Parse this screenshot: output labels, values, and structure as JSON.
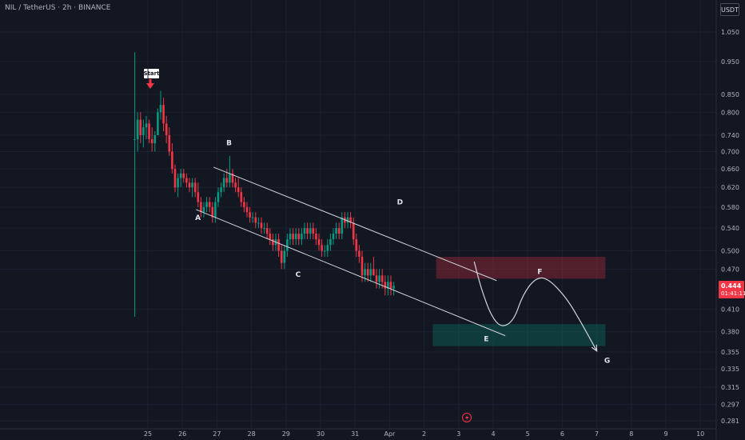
{
  "header": {
    "symbol_line": "NIL / TetherUS · 2h · BINANCE"
  },
  "currency": "USDT",
  "price_tag": {
    "price": "0.444",
    "countdown": "01:41:11"
  },
  "start_label": "Start",
  "chart_data": {
    "type": "candlestick",
    "title": "NIL / TetherUS · 2h · BINANCE",
    "y_axis": {
      "scale": "log",
      "ticks": [
        1.05,
        0.95,
        0.85,
        0.8,
        0.74,
        0.7,
        0.66,
        0.62,
        0.58,
        0.54,
        0.5,
        0.47,
        0.41,
        0.38,
        0.355,
        0.335,
        0.315,
        0.297,
        0.281
      ],
      "tick_labels": [
        "1.050",
        "0.950",
        "0.850",
        "0.800",
        "0.740",
        "0.700",
        "0.660",
        "0.620",
        "0.580",
        "0.540",
        "0.500",
        "0.470",
        "0.410",
        "0.380",
        "0.355",
        "0.335",
        "0.315",
        "0.297",
        "0.281"
      ],
      "range": [
        0.272,
        1.09
      ]
    },
    "x_axis": {
      "ticks": [
        {
          "label": "25",
          "day": 25
        },
        {
          "label": "26",
          "day": 26
        },
        {
          "label": "27",
          "day": 27
        },
        {
          "label": "28",
          "day": 28
        },
        {
          "label": "29",
          "day": 29
        },
        {
          "label": "30",
          "day": 30
        },
        {
          "label": "31",
          "day": 31
        },
        {
          "label": "Apr",
          "day": 32
        },
        {
          "label": "2",
          "day": 33
        },
        {
          "label": "3",
          "day": 34
        },
        {
          "label": "4",
          "day": 35
        },
        {
          "label": "5",
          "day": 36
        },
        {
          "label": "6",
          "day": 37
        },
        {
          "label": "7",
          "day": 38
        },
        {
          "label": "8",
          "day": 39
        },
        {
          "label": "9",
          "day": 40
        },
        {
          "label": "10",
          "day": 41
        }
      ],
      "range": [
        21.1,
        42.0
      ]
    },
    "candles_per_day": 12,
    "first_candle_day": 24.62,
    "candles": [
      [
        0.73,
        0.98,
        0.4,
        0.73
      ],
      [
        0.73,
        0.8,
        0.7,
        0.78
      ],
      [
        0.78,
        0.8,
        0.72,
        0.74
      ],
      [
        0.74,
        0.78,
        0.71,
        0.76
      ],
      [
        0.76,
        0.79,
        0.73,
        0.77
      ],
      [
        0.77,
        0.78,
        0.72,
        0.73
      ],
      [
        0.73,
        0.76,
        0.7,
        0.72
      ],
      [
        0.72,
        0.75,
        0.7,
        0.74
      ],
      [
        0.74,
        0.81,
        0.74,
        0.8
      ],
      [
        0.8,
        0.86,
        0.78,
        0.82
      ],
      [
        0.82,
        0.84,
        0.75,
        0.77
      ],
      [
        0.77,
        0.79,
        0.72,
        0.74
      ],
      [
        0.74,
        0.76,
        0.69,
        0.7
      ],
      [
        0.7,
        0.72,
        0.65,
        0.66
      ],
      [
        0.66,
        0.67,
        0.61,
        0.62
      ],
      [
        0.62,
        0.65,
        0.6,
        0.64
      ],
      [
        0.64,
        0.66,
        0.62,
        0.65
      ],
      [
        0.65,
        0.66,
        0.63,
        0.64
      ],
      [
        0.64,
        0.65,
        0.62,
        0.63
      ],
      [
        0.63,
        0.64,
        0.61,
        0.62
      ],
      [
        0.62,
        0.64,
        0.6,
        0.63
      ],
      [
        0.63,
        0.64,
        0.6,
        0.61
      ],
      [
        0.61,
        0.63,
        0.58,
        0.59
      ],
      [
        0.59,
        0.6,
        0.56,
        0.57
      ],
      [
        0.57,
        0.59,
        0.56,
        0.58
      ],
      [
        0.58,
        0.6,
        0.57,
        0.59
      ],
      [
        0.59,
        0.6,
        0.57,
        0.58
      ],
      [
        0.58,
        0.59,
        0.55,
        0.56
      ],
      [
        0.56,
        0.6,
        0.55,
        0.59
      ],
      [
        0.59,
        0.62,
        0.58,
        0.61
      ],
      [
        0.61,
        0.63,
        0.6,
        0.62
      ],
      [
        0.62,
        0.65,
        0.61,
        0.64
      ],
      [
        0.64,
        0.66,
        0.62,
        0.63
      ],
      [
        0.63,
        0.69,
        0.62,
        0.65
      ],
      [
        0.65,
        0.66,
        0.62,
        0.63
      ],
      [
        0.63,
        0.64,
        0.61,
        0.62
      ],
      [
        0.62,
        0.64,
        0.6,
        0.61
      ],
      [
        0.61,
        0.62,
        0.58,
        0.59
      ],
      [
        0.59,
        0.6,
        0.57,
        0.58
      ],
      [
        0.58,
        0.59,
        0.56,
        0.57
      ],
      [
        0.57,
        0.58,
        0.55,
        0.56
      ],
      [
        0.56,
        0.57,
        0.55,
        0.56
      ],
      [
        0.56,
        0.57,
        0.54,
        0.55
      ],
      [
        0.55,
        0.56,
        0.54,
        0.55
      ],
      [
        0.55,
        0.56,
        0.53,
        0.54
      ],
      [
        0.54,
        0.55,
        0.53,
        0.54
      ],
      [
        0.54,
        0.55,
        0.52,
        0.53
      ],
      [
        0.53,
        0.54,
        0.51,
        0.52
      ],
      [
        0.52,
        0.53,
        0.5,
        0.51
      ],
      [
        0.51,
        0.53,
        0.5,
        0.52
      ],
      [
        0.52,
        0.53,
        0.49,
        0.5
      ],
      [
        0.5,
        0.51,
        0.47,
        0.48
      ],
      [
        0.48,
        0.51,
        0.47,
        0.5
      ],
      [
        0.5,
        0.53,
        0.49,
        0.52
      ],
      [
        0.52,
        0.54,
        0.51,
        0.53
      ],
      [
        0.53,
        0.54,
        0.51,
        0.52
      ],
      [
        0.52,
        0.54,
        0.51,
        0.53
      ],
      [
        0.53,
        0.54,
        0.51,
        0.52
      ],
      [
        0.52,
        0.54,
        0.51,
        0.53
      ],
      [
        0.53,
        0.55,
        0.52,
        0.54
      ],
      [
        0.54,
        0.55,
        0.52,
        0.53
      ],
      [
        0.53,
        0.55,
        0.52,
        0.54
      ],
      [
        0.54,
        0.55,
        0.52,
        0.53
      ],
      [
        0.53,
        0.54,
        0.51,
        0.52
      ],
      [
        0.52,
        0.53,
        0.5,
        0.51
      ],
      [
        0.51,
        0.52,
        0.49,
        0.5
      ],
      [
        0.5,
        0.51,
        0.49,
        0.5
      ],
      [
        0.5,
        0.52,
        0.49,
        0.51
      ],
      [
        0.51,
        0.53,
        0.5,
        0.52
      ],
      [
        0.52,
        0.54,
        0.51,
        0.53
      ],
      [
        0.53,
        0.55,
        0.52,
        0.54
      ],
      [
        0.54,
        0.55,
        0.52,
        0.53
      ],
      [
        0.53,
        0.57,
        0.52,
        0.56
      ],
      [
        0.56,
        0.57,
        0.54,
        0.55
      ],
      [
        0.55,
        0.57,
        0.54,
        0.56
      ],
      [
        0.56,
        0.57,
        0.54,
        0.55
      ],
      [
        0.55,
        0.56,
        0.51,
        0.52
      ],
      [
        0.52,
        0.53,
        0.49,
        0.5
      ],
      [
        0.5,
        0.51,
        0.48,
        0.49
      ],
      [
        0.49,
        0.5,
        0.45,
        0.46
      ],
      [
        0.46,
        0.48,
        0.45,
        0.47
      ],
      [
        0.47,
        0.48,
        0.45,
        0.46
      ],
      [
        0.46,
        0.48,
        0.45,
        0.47
      ],
      [
        0.47,
        0.49,
        0.46,
        0.46
      ],
      [
        0.46,
        0.47,
        0.44,
        0.45
      ],
      [
        0.45,
        0.47,
        0.44,
        0.46
      ],
      [
        0.46,
        0.47,
        0.44,
        0.45
      ],
      [
        0.45,
        0.46,
        0.43,
        0.44
      ],
      [
        0.44,
        0.46,
        0.43,
        0.45
      ],
      [
        0.45,
        0.46,
        0.43,
        0.44
      ],
      [
        0.44,
        0.45,
        0.43,
        0.444
      ]
    ],
    "wave_points": [
      {
        "label": "A",
        "day": 26.45,
        "price": 0.555
      },
      {
        "label": "B",
        "day": 27.35,
        "price": 0.715
      },
      {
        "label": "C",
        "day": 29.35,
        "price": 0.458
      },
      {
        "label": "D",
        "day": 32.3,
        "price": 0.585
      },
      {
        "label": "E",
        "day": 34.8,
        "price": 0.368
      },
      {
        "label": "F",
        "day": 36.35,
        "price": 0.462
      },
      {
        "label": "G",
        "day": 38.3,
        "price": 0.342
      }
    ],
    "channel_lines": [
      {
        "from": {
          "day": 26.9,
          "price": 0.664
        },
        "to": {
          "day": 35.1,
          "price": 0.452
        }
      },
      {
        "from": {
          "day": 26.4,
          "price": 0.575
        },
        "to": {
          "day": 35.35,
          "price": 0.375
        }
      }
    ],
    "zones": [
      {
        "name": "resistance-zone",
        "color": "#f23645",
        "price_top": 0.49,
        "price_bottom": 0.455,
        "day_start": 33.35,
        "day_end": 38.25
      },
      {
        "name": "support-zone",
        "color": "#089981",
        "price_top": 0.39,
        "price_bottom": 0.362,
        "day_start": 33.25,
        "day_end": 38.25
      }
    ],
    "projection_path": [
      {
        "day": 34.45,
        "price": 0.482
      },
      {
        "day": 34.65,
        "price": 0.44
      },
      {
        "day": 34.95,
        "price": 0.4
      },
      {
        "day": 35.25,
        "price": 0.385
      },
      {
        "day": 35.6,
        "price": 0.395
      },
      {
        "day": 35.85,
        "price": 0.43
      },
      {
        "day": 36.2,
        "price": 0.455
      },
      {
        "day": 36.55,
        "price": 0.457
      },
      {
        "day": 37.1,
        "price": 0.428
      },
      {
        "day": 37.55,
        "price": 0.392
      },
      {
        "day": 38.0,
        "price": 0.356
      }
    ],
    "colors": {
      "up": "#089981",
      "down": "#f23645",
      "background": "#131722",
      "line": "#d1d4dc"
    }
  }
}
